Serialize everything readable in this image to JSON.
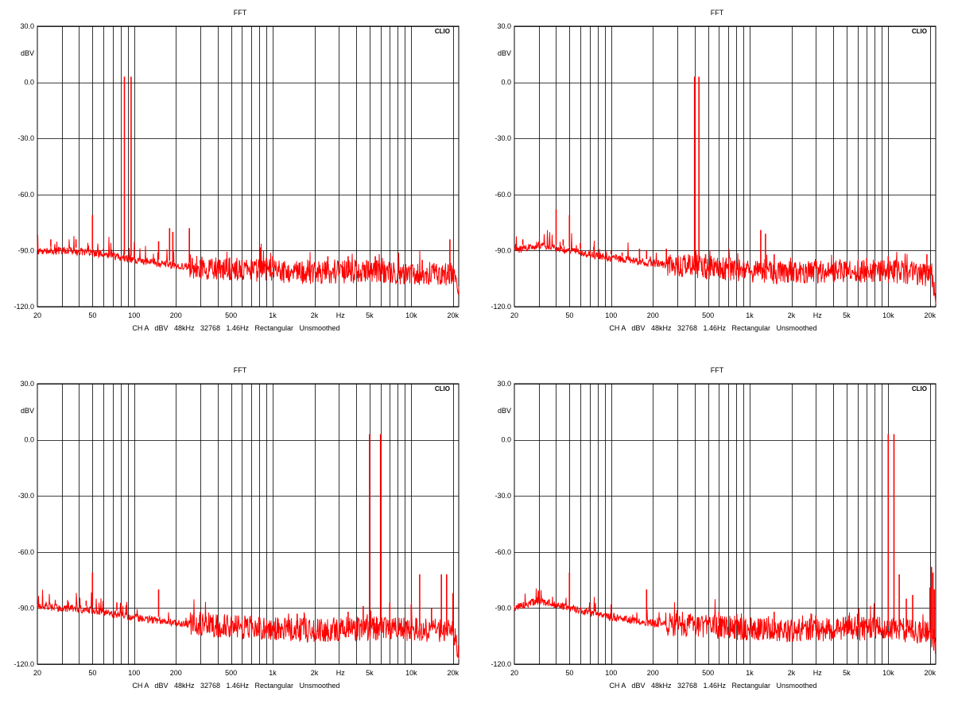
{
  "chart_data": [
    {
      "type": "line",
      "title": "FFT",
      "brand": "CLIO",
      "ylabel": "dBV",
      "xlabel": "Hz",
      "footer": "CH A   dBV   48kHz   32768   1.46Hz   Rectangular   Unsmoothed",
      "xscale": "log",
      "xlim": [
        20,
        22000
      ],
      "ylim": [
        -120,
        30
      ],
      "y_ticks": [
        "30.0",
        "0.0",
        "-30.0",
        "-60.0",
        "-90.0",
        "-120.0"
      ],
      "x_ticks": [
        "20",
        "50",
        "100",
        "200",
        "500",
        "1k",
        "2k",
        "5k",
        "10k",
        "20k"
      ],
      "grid": true,
      "series": [
        {
          "color": "#ff0000",
          "noise_floor": [
            [
              20,
              -90
            ],
            [
              30,
              -90
            ],
            [
              50,
              -91
            ],
            [
              100,
              -95
            ],
            [
              200,
              -98
            ],
            [
              500,
              -100
            ],
            [
              1000,
              -101
            ],
            [
              2000,
              -102
            ],
            [
              5000,
              -101
            ],
            [
              10000,
              -102
            ],
            [
              20000,
              -103
            ],
            [
              22000,
              -112
            ]
          ],
          "peaks": [
            [
              25,
              -84
            ],
            [
              30,
              -88
            ],
            [
              38,
              -84
            ],
            [
              50,
              -71
            ],
            [
              60,
              -89
            ],
            [
              85,
              3
            ],
            [
              95,
              3
            ],
            [
              150,
              -85
            ],
            [
              180,
              -78
            ],
            [
              190,
              -80
            ],
            [
              250,
              -78
            ],
            [
              300,
              -95
            ],
            [
              600,
              -95
            ],
            [
              900,
              -94
            ],
            [
              1000,
              -93
            ],
            [
              2500,
              -93
            ],
            [
              3500,
              -93
            ],
            [
              5500,
              -93
            ],
            [
              12000,
              -95
            ],
            [
              19000,
              -84
            ]
          ]
        }
      ]
    },
    {
      "type": "line",
      "title": "FFT",
      "brand": "CLIO",
      "ylabel": "dBV",
      "xlabel": "Hz",
      "footer": "CH A   dBV   48kHz   32768   1.46Hz   Rectangular   Unsmoothed",
      "xscale": "log",
      "xlim": [
        20,
        22000
      ],
      "ylim": [
        -120,
        30
      ],
      "y_ticks": [
        "30.0",
        "0.0",
        "-30.0",
        "-60.0",
        "-90.0",
        "-120.0"
      ],
      "x_ticks": [
        "20",
        "50",
        "100",
        "200",
        "500",
        "1k",
        "2k",
        "5k",
        "10k",
        "20k"
      ],
      "grid": true,
      "series": [
        {
          "color": "#ff0000",
          "noise_floor": [
            [
              20,
              -90
            ],
            [
              30,
              -87
            ],
            [
              50,
              -90
            ],
            [
              100,
              -94
            ],
            [
              200,
              -97
            ],
            [
              500,
              -99
            ],
            [
              1000,
              -101
            ],
            [
              2000,
              -102
            ],
            [
              5000,
              -101
            ],
            [
              10000,
              -101
            ],
            [
              20000,
              -103
            ],
            [
              22000,
              -113
            ]
          ],
          "peaks": [
            [
              23,
              -84
            ],
            [
              40,
              -68
            ],
            [
              45,
              -84
            ],
            [
              50,
              -71
            ],
            [
              60,
              -86
            ],
            [
              75,
              -88
            ],
            [
              100,
              -90
            ],
            [
              120,
              -91
            ],
            [
              160,
              -89
            ],
            [
              180,
              -90
            ],
            [
              250,
              -89
            ],
            [
              400,
              3
            ],
            [
              430,
              3
            ],
            [
              480,
              -92
            ],
            [
              1200,
              -79
            ],
            [
              1300,
              -81
            ],
            [
              1500,
              -92
            ],
            [
              3000,
              -95
            ],
            [
              7000,
              -94
            ],
            [
              10000,
              -93
            ],
            [
              19000,
              -92
            ]
          ]
        }
      ]
    },
    {
      "type": "line",
      "title": "FFT",
      "brand": "CLIO",
      "ylabel": "dBV",
      "xlabel": "Hz",
      "footer": "CH A   dBV   48kHz   32768   1.46Hz   Rectangular   Unsmoothed",
      "xscale": "log",
      "xlim": [
        20,
        22000
      ],
      "ylim": [
        -120,
        30
      ],
      "y_ticks": [
        "30.0",
        "0.0",
        "-30.0",
        "-60.0",
        "-90.0",
        "-120.0"
      ],
      "x_ticks": [
        "20",
        "50",
        "100",
        "200",
        "500",
        "1k",
        "2k",
        "5k",
        "10k",
        "20k"
      ],
      "grid": true,
      "series": [
        {
          "color": "#ff0000",
          "noise_floor": [
            [
              20,
              -89
            ],
            [
              30,
              -90
            ],
            [
              50,
              -91
            ],
            [
              100,
              -95
            ],
            [
              200,
              -98
            ],
            [
              500,
              -100
            ],
            [
              1000,
              -101
            ],
            [
              2000,
              -102
            ],
            [
              4000,
              -101
            ],
            [
              8000,
              -101
            ],
            [
              15000,
              -102
            ],
            [
              20000,
              -103
            ],
            [
              22000,
              -114
            ]
          ],
          "peaks": [
            [
              30,
              -88
            ],
            [
              45,
              -86
            ],
            [
              50,
              -71
            ],
            [
              60,
              -86
            ],
            [
              75,
              -87
            ],
            [
              150,
              -80
            ],
            [
              300,
              -92
            ],
            [
              700,
              -94
            ],
            [
              1500,
              -93
            ],
            [
              3500,
              -92
            ],
            [
              4500,
              -89
            ],
            [
              5000,
              3
            ],
            [
              6000,
              3
            ],
            [
              7000,
              -87
            ],
            [
              10000,
              -88
            ],
            [
              11500,
              -72
            ],
            [
              14000,
              -90
            ],
            [
              16500,
              -72
            ],
            [
              18000,
              -72
            ],
            [
              20000,
              -82
            ]
          ]
        }
      ]
    },
    {
      "type": "line",
      "title": "FFT",
      "brand": "CLIO",
      "ylabel": "dBV",
      "xlabel": "Hz",
      "footer": "CH A   dBV   48kHz   32768   1.46Hz   Rectangular   Unsmoothed",
      "xscale": "log",
      "xlim": [
        20,
        22000
      ],
      "ylim": [
        -120,
        30
      ],
      "y_ticks": [
        "30.0",
        "0.0",
        "-30.0",
        "-60.0",
        "-90.0",
        "-120.0"
      ],
      "x_ticks": [
        "20",
        "50",
        "100",
        "200",
        "500",
        "1k",
        "2k",
        "5k",
        "10k",
        "20k"
      ],
      "grid": true,
      "series": [
        {
          "color": "#ff0000",
          "noise_floor": [
            [
              20,
              -90
            ],
            [
              30,
              -86
            ],
            [
              50,
              -90
            ],
            [
              100,
              -95
            ],
            [
              200,
              -98
            ],
            [
              500,
              -100
            ],
            [
              1000,
              -101
            ],
            [
              2000,
              -102
            ],
            [
              5000,
              -101
            ],
            [
              9000,
              -101
            ],
            [
              12000,
              -102
            ],
            [
              20000,
              -103
            ],
            [
              22000,
              -113
            ]
          ],
          "peaks": [
            [
              30,
              -81
            ],
            [
              50,
              -71
            ],
            [
              70,
              -87
            ],
            [
              100,
              -88
            ],
            [
              180,
              -80
            ],
            [
              300,
              -91
            ],
            [
              600,
              -92
            ],
            [
              1500,
              -92
            ],
            [
              3000,
              -94
            ],
            [
              6000,
              -93
            ],
            [
              10000,
              3
            ],
            [
              11000,
              3
            ],
            [
              12000,
              -72
            ],
            [
              13500,
              -85
            ],
            [
              15000,
              -83
            ],
            [
              20000,
              -79
            ],
            [
              20500,
              -68
            ],
            [
              21000,
              -71
            ],
            [
              21500,
              -80
            ]
          ]
        }
      ]
    }
  ]
}
